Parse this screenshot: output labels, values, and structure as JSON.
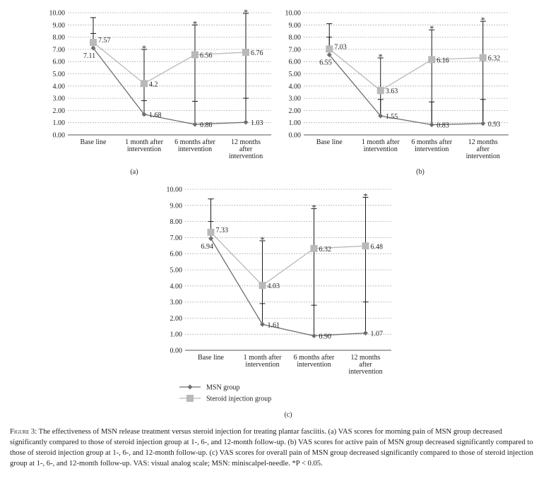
{
  "colors": {
    "msn": "#6e6e6e",
    "steroid": "#b9b9b9",
    "grid": "#9a9a9a",
    "error": "#1a1a1a",
    "axis": "#555555"
  },
  "y_ticks": [
    "10.00",
    "9.00",
    "8.00",
    "7.00",
    "6.00",
    "5.00",
    "4.00",
    "3.00",
    "2.00",
    "1.00",
    "0.00"
  ],
  "chart_data": [
    {
      "type": "line",
      "panel": "(a)",
      "title": "VAS scores for morning pain",
      "categories": [
        [
          "Base line"
        ],
        [
          "1 month after",
          "intervention"
        ],
        [
          "6 months after",
          "intervention"
        ],
        [
          "12 months",
          "after",
          "intervention"
        ]
      ],
      "ylim": [
        0,
        10
      ],
      "series": [
        {
          "name": "MSN group",
          "values": [
            7.11,
            1.68,
            0.86,
            1.03
          ],
          "labels": [
            "7.11",
            "1.68",
            "0.86",
            "1.03"
          ],
          "err_up": [
            8.3,
            2.8,
            2.75,
            3.0
          ],
          "err_down": [
            7.11,
            1.68,
            0.86,
            1.03
          ]
        },
        {
          "name": "Steroid injection group",
          "values": [
            7.57,
            4.2,
            6.56,
            6.76
          ],
          "labels": [
            "7.57",
            "4.2",
            "6.56",
            "6.76"
          ],
          "err_up": [
            9.6,
            7.0,
            9.0,
            9.95
          ],
          "err_down": [
            7.57,
            1.68,
            0.86,
            1.03
          ]
        }
      ],
      "significance": [
        "",
        "*",
        "*",
        "*"
      ]
    },
    {
      "type": "line",
      "panel": "(b)",
      "title": "VAS scores for active pain",
      "categories": [
        [
          "Base line"
        ],
        [
          "1 month after",
          "intervention"
        ],
        [
          "6 months after",
          "intervention"
        ],
        [
          "12 months",
          "after",
          "intervention"
        ]
      ],
      "ylim": [
        0,
        10
      ],
      "series": [
        {
          "name": "MSN group",
          "values": [
            6.55,
            1.55,
            0.83,
            0.93
          ],
          "labels": [
            "6.55",
            "1.55",
            "0.83",
            "0.93"
          ],
          "err_up": [
            8.0,
            2.9,
            2.7,
            2.9
          ],
          "err_down": [
            6.55,
            1.55,
            0.83,
            0.93
          ]
        },
        {
          "name": "Steroid injection group",
          "values": [
            7.03,
            3.63,
            6.16,
            6.32
          ],
          "labels": [
            "7.03",
            "3.63",
            "6.16",
            "6.32"
          ],
          "err_up": [
            9.1,
            6.3,
            8.6,
            9.3
          ],
          "err_down": [
            7.03,
            1.55,
            0.83,
            0.93
          ]
        }
      ],
      "significance": [
        "",
        "*",
        "*",
        "*"
      ]
    },
    {
      "type": "line",
      "panel": "(c)",
      "title": "VAS scores for overall pain",
      "categories": [
        [
          "Base line"
        ],
        [
          "1 month after",
          "intervention"
        ],
        [
          "6 months after",
          "intervention"
        ],
        [
          "12 months",
          "after",
          "intervention"
        ]
      ],
      "ylim": [
        0,
        10
      ],
      "series": [
        {
          "name": "MSN group",
          "values": [
            6.94,
            1.61,
            0.9,
            1.07
          ],
          "labels": [
            "6.94",
            "1.61",
            "0.90",
            "1.07"
          ],
          "err_up": [
            8.0,
            2.9,
            2.8,
            3.0
          ],
          "err_down": [
            6.94,
            1.61,
            0.9,
            1.07
          ]
        },
        {
          "name": "Steroid injection group",
          "values": [
            7.33,
            4.03,
            6.32,
            6.48
          ],
          "labels": [
            "7.33",
            "4.03",
            "6.32",
            "6.48"
          ],
          "err_up": [
            9.4,
            6.8,
            8.8,
            9.5
          ],
          "err_down": [
            7.33,
            1.61,
            0.9,
            1.07
          ]
        }
      ],
      "significance": [
        "",
        "*",
        "*",
        "*"
      ],
      "legend": {
        "placement": "bottom-left",
        "entries": [
          "MSN group",
          "Steroid injection group"
        ]
      }
    }
  ],
  "caption": {
    "figure_label": "Figure 3:",
    "text": " The effectiveness of MSN release treatment versus steroid injection for treating plantar fasciitis. (a) VAS scores for morning pain of MSN group decreased significantly compared to those of steroid injection group at 1-, 6-, and 12-month follow-up. (b) VAS scores for active pain of MSN group decreased significantly compared to those of steroid injection group at 1-, 6-, and 12-month follow-up. (c) VAS scores for overall pain of MSN group decreased significantly compared to those of steroid injection group at 1-, 6-, and 12-month follow-up. VAS: visual analog scale; MSN: miniscalpel-needle. ",
    "p_note": "*P < 0.05."
  }
}
